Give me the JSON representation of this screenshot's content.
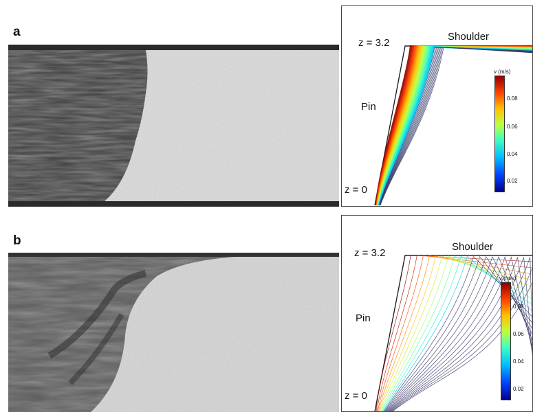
{
  "panels": [
    {
      "id": "a",
      "letter": "a",
      "plot": {
        "label_top": "z = 3.2",
        "label_bottom": "z = 0",
        "label_pin": "Pin",
        "label_shoulder": "Shoulder",
        "colorbar_title": "v (m/s)",
        "colorbar_ticks": [
          "0.08",
          "0.06",
          "0.04",
          "0.02"
        ]
      }
    },
    {
      "id": "b",
      "letter": "b",
      "plot": {
        "label_top": "z = 3.2",
        "label_bottom": "z = 0",
        "label_pin": "Pin",
        "label_shoulder": "Shoulder",
        "colorbar_title": "v (m/s)",
        "colorbar_ticks": [
          "0.08",
          "0.06",
          "0.04",
          "0.02"
        ]
      }
    }
  ],
  "colors": {
    "colormap": [
      "#00008f",
      "#0040ff",
      "#00c0ff",
      "#40ffbf",
      "#bfff40",
      "#ffc000",
      "#ff4000",
      "#8f0000"
    ],
    "micrograph_dark": "#3a3a3a",
    "micrograph_light": "#d9d9d9"
  }
}
